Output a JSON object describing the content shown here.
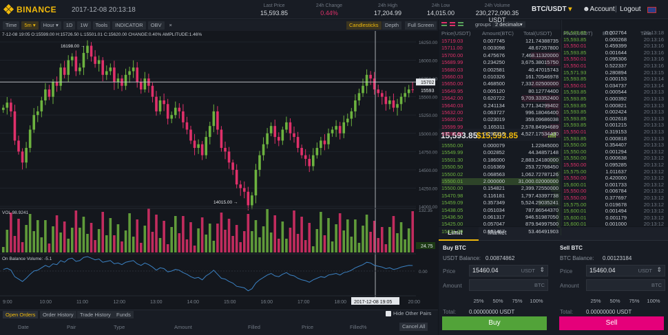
{
  "header": {
    "logo": "BINANCE",
    "datetime": "2017-12-08 20:13:18",
    "stats": [
      {
        "label": "Last Price",
        "value": "15,593.85",
        "neg": false
      },
      {
        "label": "24h Change",
        "value": "0.44%",
        "neg": true
      },
      {
        "label": "24h High",
        "value": "17,204.99",
        "neg": false
      },
      {
        "label": "24h Low",
        "value": "14,015.00",
        "neg": false
      },
      {
        "label": "24h Volume",
        "value": "230,272,090.35 USDT",
        "neg": false
      }
    ],
    "pair": "BTC/USDT",
    "pair_caret": "▾",
    "account": "Account",
    "logout": "Logout",
    "logout_sep": "|"
  },
  "toolbar": {
    "left": [
      "Time",
      "5m ▾",
      "Hour ▾",
      "1D",
      "1W",
      "Tools",
      "INDICATOR",
      "OBV",
      "×"
    ],
    "right": [
      "Candlesticks",
      "Depth",
      "Full Screen"
    ]
  },
  "chart": {
    "ohlc": "7-12-08 19:05  O:15599.00 H:15726.50 L:15501.01 C:15620.00 CHANGE:0.40% AMPLITUDE:1.46%",
    "high_marker": "16198.00",
    "low_marker": "14015.00",
    "price_ticks": [
      "16250.00",
      "16000.00",
      "15750.00",
      "15500.00",
      "15250.00",
      "15000.00",
      "14750.00",
      "14500.00",
      "14250.00",
      "14000.00"
    ],
    "price_tag_cursor": "15702",
    "price_tag_last": "15593",
    "vol_label": "VOL 98.9241",
    "vol_top": "132.35",
    "vol_tag": "24.75",
    "obv_label": "On Balance Volume: -5.1",
    "obv_tick": "0.00",
    "time_ticks": [
      "9:00",
      "10:00",
      "11:00",
      "12:00",
      "13:00",
      "14:00",
      "15:00",
      "16:00",
      "17:00",
      "18:00",
      "19:00",
      "20:00"
    ],
    "cursor_time": "2017-12-08 19:05",
    "colors": {
      "up": "#6db33f",
      "down": "#e0306a",
      "obv": "#3b82c4"
    }
  },
  "chart_data": {
    "type": "candlestick",
    "interval": "5m",
    "close": [
      15350,
      15420,
      15300,
      14900,
      14750,
      14600,
      14800,
      15050,
      15250,
      15300,
      15450,
      15600,
      15500,
      15700,
      15650,
      15900,
      15800,
      16000,
      16050,
      15850,
      15900,
      16100,
      16198,
      16050,
      15950,
      16000,
      15800,
      15850,
      15900,
      15700,
      15750,
      15650,
      15800,
      15850,
      15900,
      15700,
      15600,
      15750,
      15650,
      15500,
      15300,
      15450,
      15400,
      15200,
      15250,
      15350,
      15300,
      15150,
      15050,
      14900,
      14800,
      14850,
      14700,
      14950,
      15100,
      15300,
      15050,
      14800,
      14750,
      14600,
      14500,
      14300,
      14250,
      14200,
      14015,
      14150,
      14500,
      14700,
      14850,
      15000,
      15100,
      14950,
      14900,
      15050,
      15150,
      15000,
      14950,
      14800,
      14700,
      14650,
      14550,
      14700,
      14800,
      14900,
      14850,
      15000,
      15050,
      15100,
      15000,
      15150,
      15200,
      15300,
      15450,
      15550,
      15650,
      15800,
      15750,
      15600,
      15550,
      15500,
      15400,
      15450,
      15350,
      15400,
      15500,
      15550,
      15600,
      15593.85
    ],
    "vol_range": [
      0,
      132.35
    ],
    "ylim": [
      14000,
      16250
    ]
  },
  "orderbook": {
    "groups_label": "groups",
    "groups_value": "2 decimals▾",
    "headers": [
      "Price(USDT)",
      "Amount(BTC)",
      "Total(USDT)"
    ],
    "asks": [
      [
        "15719.03",
        "0.007745",
        "121.74388735"
      ],
      [
        "15711.00",
        "0.003098",
        "48.67267800"
      ],
      [
        "15700.00",
        "0.475676",
        "7,468.11320000"
      ],
      [
        "15689.99",
        "0.234250",
        "3,675.38015750"
      ],
      [
        "15680.03",
        "0.002581",
        "40.47015743"
      ],
      [
        "15660.03",
        "0.010326",
        "161.70546978"
      ],
      [
        "15650.00",
        "0.468500",
        "7,332.02500000"
      ],
      [
        "15649.95",
        "0.005120",
        "80.12774400"
      ],
      [
        "15642.00",
        "0.620722",
        "9,709.33352400"
      ],
      [
        "15640.03",
        "0.241134",
        "3,771.34299402"
      ],
      [
        "15632.00",
        "0.063727",
        "996.18046400"
      ],
      [
        "15600.02",
        "0.023019",
        "359.09686038"
      ],
      [
        "15599.99",
        "0.165311",
        "2,578.84994689"
      ],
      [
        "15593.85",
        "0.290318",
        "4,527.17534430"
      ]
    ],
    "last_price": "15,593.85",
    "last_price_alt": "$15,593.85",
    "bids": [
      [
        "15550.00",
        "0.000079",
        "1.22845000"
      ],
      [
        "15549.99",
        "0.002852",
        "44.34857148"
      ],
      [
        "15501.30",
        "0.186000",
        "2,883.24180000"
      ],
      [
        "15500.50",
        "0.016369",
        "253.72768450"
      ],
      [
        "15500.02",
        "0.068563",
        "1,062.72787126"
      ],
      [
        "15500.01",
        "2.000000",
        "31,000.02000000"
      ],
      [
        "15500.00",
        "0.154821",
        "2,399.72550000"
      ],
      [
        "15470.98",
        "0.116181",
        "1,797.43397738"
      ],
      [
        "15459.09",
        "0.357349",
        "5,524.29035241"
      ],
      [
        "15438.05",
        "0.051034",
        "787.86544370"
      ],
      [
        "15436.50",
        "0.061317",
        "946.51987050"
      ],
      [
        "15425.00",
        "0.057047",
        "879.94997500"
      ],
      [
        "15421.09",
        "0.003467",
        "53.46491903"
      ]
    ]
  },
  "trades": {
    "headers": [
      "Price(USDT)",
      "BTC",
      "Time"
    ],
    "rows": [
      [
        "15,593.85",
        "0.002764",
        "20:13:18",
        "g"
      ],
      [
        "15,593.85",
        "0.000268",
        "20:13:16",
        "g"
      ],
      [
        "15,550.01",
        "0.459399",
        "20:13:16",
        "r"
      ],
      [
        "15,593.85",
        "0.001644",
        "20:13:16",
        "g"
      ],
      [
        "15,550.01",
        "0.095306",
        "20:13:16",
        "r"
      ],
      [
        "15,550.01",
        "0.522337",
        "20:13:16",
        "r"
      ],
      [
        "15,571.93",
        "0.280894",
        "20:13:15",
        "g"
      ],
      [
        "15,593.85",
        "0.000153",
        "20:13:14",
        "g"
      ],
      [
        "15,550.01",
        "0.034737",
        "20:13:14",
        "r"
      ],
      [
        "15,593.85",
        "0.000544",
        "20:13:13",
        "g"
      ],
      [
        "15,593.85",
        "0.000392",
        "20:13:13",
        "g"
      ],
      [
        "15,593.85",
        "0.000821",
        "20:13:13",
        "g"
      ],
      [
        "15,593.85",
        "0.002424",
        "20:13:13",
        "g"
      ],
      [
        "15,593.85",
        "0.002618",
        "20:13:13",
        "g"
      ],
      [
        "15,593.85",
        "0.001215",
        "20:13:13",
        "g"
      ],
      [
        "15,550.01",
        "0.319153",
        "20:13:13",
        "r"
      ],
      [
        "15,593.85",
        "0.000818",
        "20:13:13",
        "g"
      ],
      [
        "15,550.00",
        "0.354407",
        "20:13:13",
        "g"
      ],
      [
        "15,550.00",
        "0.001294",
        "20:13:12",
        "g"
      ],
      [
        "15,550.00",
        "0.000638",
        "20:13:12",
        "g"
      ],
      [
        "15,550.00",
        "0.095285",
        "20:13:12",
        "r"
      ],
      [
        "15,575.00",
        "1.011637",
        "20:13:12",
        "g"
      ],
      [
        "15,550.00",
        "0.420000",
        "20:13:12",
        "r"
      ],
      [
        "15,600.01",
        "0.001733",
        "20:13:12",
        "g"
      ],
      [
        "15,550.00",
        "0.006784",
        "20:13:12",
        "r"
      ],
      [
        "15,550.00",
        "0.377697",
        "20:13:12",
        "r"
      ],
      [
        "15,575.00",
        "0.019678",
        "20:13:12",
        "g"
      ],
      [
        "15,600.01",
        "0.001494",
        "20:13:12",
        "g"
      ],
      [
        "15,600.01",
        "0.001179",
        "20:13:12",
        "g"
      ],
      [
        "15,600.01",
        "0.001000",
        "20:13:12",
        "g"
      ]
    ]
  },
  "trade": {
    "tabs": [
      "Limit",
      "Market"
    ],
    "buy": {
      "title": "Buy BTC",
      "balance_label": "USDT Balance:",
      "balance": "0.00874862",
      "price_label": "Price",
      "price": "15460.04",
      "price_unit": "USDT",
      "amount_label": "Amount",
      "amount_unit": "BTC",
      "total_label": "Total:",
      "total": "0.00000000 USDT",
      "button": "Buy"
    },
    "sell": {
      "title": "Sell BTC",
      "balance_label": "BTC Balance:",
      "balance": "0.00123184",
      "price_label": "Price",
      "price": "15460.04",
      "price_unit": "USDT",
      "amount_label": "Amount",
      "amount_unit": "BTC",
      "total_label": "Total:",
      "total": "0.00000000 USDT",
      "button": "Sell"
    },
    "percents": [
      "25%",
      "50%",
      "75%",
      "100%"
    ],
    "colors": {
      "buy": "#52a339",
      "sell": "#e5007a"
    }
  },
  "orders": {
    "tabs": [
      "Open Orders",
      "Order History",
      "Trade History",
      "Funds"
    ],
    "hide_label": "Hide Other Pairs",
    "columns": [
      "Date",
      "Pair",
      "Type",
      "Amount",
      "Filled",
      "Price",
      "Filled%"
    ],
    "cancel_all": "Cancel All"
  }
}
